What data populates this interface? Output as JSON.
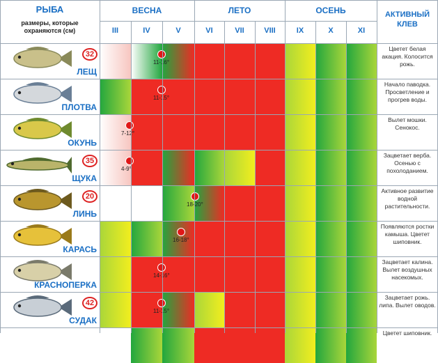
{
  "header": {
    "fish_col": "РЫБА",
    "sizes_note": "размеры, которые охраняются (см)",
    "seasons": [
      "ВЕСНА",
      "ЛЕТО",
      "ОСЕНЬ"
    ],
    "months": [
      "III",
      "IV",
      "V",
      "VI",
      "VII",
      "VIII",
      "IX",
      "X",
      "XI"
    ],
    "active_col": "АКТИВНЫЙ КЛЕВ"
  },
  "colors": {
    "red": "#ee2b24",
    "green": "#22a63e",
    "yellow": "#f2ee1e",
    "lightgreen": "#a9d63a",
    "white": "#ffffff",
    "pink": "#f7c6c0",
    "header_blue": "#1a6fc4"
  },
  "rows": [
    {
      "name": "ЛЕЩ",
      "size": "32",
      "fish": "bream-icon",
      "spawn_temp": "11-16°",
      "cells": [
        "pink",
        "white-green",
        "green-red",
        "red",
        "red",
        "red",
        "yellow",
        "green",
        "green"
      ],
      "note": "Цветет белая акация. Колосится рожь."
    },
    {
      "name": "ПЛОТВА",
      "size": "",
      "fish": "roach-icon",
      "spawn_temp": "11-15°",
      "cells": [
        "green",
        "red",
        "red",
        "red",
        "red",
        "red",
        "yellow",
        "green",
        "green"
      ],
      "note": "Начало паводка. Просветление и прогрев воды."
    },
    {
      "name": "ОКУНЬ",
      "size": "",
      "fish": "perch-icon",
      "spawn_temp": "7-12°",
      "cells": [
        "pink",
        "red",
        "red",
        "red",
        "red",
        "red",
        "yellow",
        "green",
        "green"
      ],
      "note": "Вылет мошки. Сенокос."
    },
    {
      "name": "ЩУКА",
      "size": "35",
      "fish": "pike-icon",
      "spawn_temp": "4-9°",
      "cells": [
        "pink",
        "red",
        "green-red",
        "green",
        "yellow",
        "red",
        "yellow",
        "green",
        "green"
      ],
      "note": "Зацветает верба. Осенью с похолоданием."
    },
    {
      "name": "ЛИНЬ",
      "size": "20",
      "fish": "tench-icon",
      "spawn_temp": "18-20°",
      "cells": [
        "white",
        "white",
        "green",
        "green-red",
        "red",
        "red",
        "yellow",
        "green",
        "green"
      ],
      "note": "Активное развитие водной растительности."
    },
    {
      "name": "КАРАСЬ",
      "size": "",
      "fish": "crucian-icon",
      "spawn_temp": "16-18°",
      "cells": [
        "yellow",
        "green",
        "green-red",
        "red",
        "red",
        "red",
        "yellow",
        "green",
        "green"
      ],
      "note": "Появляются ростки камыша. Цветет шиповник."
    },
    {
      "name": "КРАСНОПЕРКА",
      "size": "",
      "fish": "rudd-icon",
      "spawn_temp": "14-16°",
      "cells": [
        "yellow",
        "red",
        "red",
        "red",
        "red",
        "red",
        "yellow",
        "green",
        "green"
      ],
      "note": "Зацветает калина. Вылет воздушных насекомых."
    },
    {
      "name": "СУДАК",
      "size": "42",
      "fish": "zander-icon",
      "spawn_temp": "11-15°",
      "cells": [
        "yellow",
        "red",
        "green-red",
        "yellow",
        "red",
        "red",
        "yellow",
        "green",
        "green"
      ],
      "note": "Зацветает рожь. липа. Вылет оводов."
    },
    {
      "name": "",
      "size": "",
      "fish": "",
      "spawn_temp": "",
      "cells": [
        "white",
        "green",
        "green",
        "red",
        "red",
        "red",
        "yellow",
        "green",
        "green"
      ],
      "note": "Цветет шиповник."
    }
  ]
}
